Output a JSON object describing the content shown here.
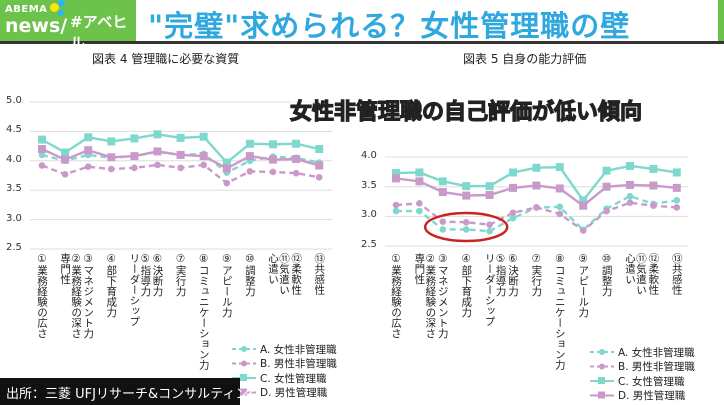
{
  "header": {
    "logo_top": "ABEMA",
    "logo_bottom": "news/",
    "hashtag": "#アベヒル",
    "title": "\"完璧\"求められる？女性管理職の壁",
    "brand_color": "#6cc24a",
    "title_color": "#2ea8de"
  },
  "caption": "女性非管理職の自己評価が低い傾向",
  "source": "出所：三菱 UFJリサーチ&コンサルティング",
  "colors": {
    "teal": "#7fd8cc",
    "pink": "#c99ac9",
    "highlight": "#cc2222"
  },
  "chart_data": [
    {
      "type": "line",
      "title": "図表 4  管理職に必要な資質",
      "ylim": [
        2.5,
        5.0
      ],
      "yticks": [
        "5.0",
        "4.5",
        "4.0",
        "3.5",
        "3.0",
        "2.5"
      ],
      "grid": true,
      "legend": "bottom-right",
      "categories": [
        "①業務経験の広さ",
        "②業務経験の深さ 専門性",
        "③マネジメント力",
        "④部下育成力",
        "⑤指導力 リーダーシップ",
        "⑥決断力",
        "⑦実行力",
        "⑧コミュニケーション力",
        "⑨アピール力",
        "⑩調整力",
        "⑪気遣い 心遣い",
        "⑫柔軟性",
        "⑬共感性"
      ],
      "series": [
        {
          "name": "A. 女性非管理職",
          "style": "dashed",
          "color": "teal",
          "marker": "circle",
          "values": [
            4.1,
            4.0,
            4.1,
            4.05,
            4.08,
            4.15,
            4.1,
            4.12,
            3.8,
            4.0,
            4.07,
            4.05,
            3.97
          ]
        },
        {
          "name": "B. 男性非管理職",
          "style": "dashed",
          "color": "pink",
          "marker": "circle",
          "values": [
            3.92,
            3.77,
            3.9,
            3.86,
            3.88,
            3.93,
            3.88,
            3.93,
            3.62,
            3.82,
            3.81,
            3.79,
            3.72
          ]
        },
        {
          "name": "C. 女性管理職",
          "style": "solid",
          "color": "teal",
          "marker": "square",
          "values": [
            4.36,
            4.14,
            4.4,
            4.33,
            4.38,
            4.45,
            4.39,
            4.41,
            3.97,
            4.29,
            4.28,
            4.29,
            4.2
          ]
        },
        {
          "name": "D. 男性管理職",
          "style": "solid",
          "color": "pink",
          "marker": "square",
          "values": [
            4.2,
            4.02,
            4.18,
            4.06,
            4.08,
            4.16,
            4.1,
            4.08,
            3.87,
            4.08,
            4.02,
            4.03,
            3.92
          ]
        }
      ]
    },
    {
      "type": "line",
      "title": "図表 5  自身の能力評価",
      "ylim": [
        2.5,
        4.5
      ],
      "yticks": [
        "4.0",
        "3.5",
        "3.0",
        "2.5"
      ],
      "grid": true,
      "legend": "bottom-right",
      "categories": [
        "①業務経験の広さ",
        "②業務経験の深さ 専門性",
        "③マネジメント力",
        "④部下育成力",
        "⑤指導力 リーダーシップ",
        "⑥決断力",
        "⑦実行力",
        "⑧コミュニケーション力",
        "⑨アピール力",
        "⑩調整力",
        "⑪気遣い 心遣い",
        "⑫柔軟性",
        "⑬共感性"
      ],
      "series": [
        {
          "name": "A. 女性非管理職",
          "style": "dashed",
          "color": "teal",
          "marker": "circle",
          "values": [
            3.09,
            3.09,
            2.78,
            2.78,
            2.75,
            2.97,
            3.15,
            3.16,
            2.77,
            3.13,
            3.34,
            3.21,
            3.27
          ]
        },
        {
          "name": "B. 男性非管理職",
          "style": "dashed",
          "color": "pink",
          "marker": "circle",
          "values": [
            3.19,
            3.22,
            2.91,
            2.9,
            2.86,
            3.06,
            3.15,
            3.04,
            2.76,
            3.09,
            3.23,
            3.18,
            3.15
          ]
        },
        {
          "name": "C. 女性管理職",
          "style": "solid",
          "color": "teal",
          "marker": "square",
          "values": [
            3.73,
            3.74,
            3.59,
            3.51,
            3.51,
            3.74,
            3.82,
            3.83,
            3.27,
            3.77,
            3.85,
            3.8,
            3.74
          ]
        },
        {
          "name": "D. 男性管理職",
          "style": "solid",
          "color": "pink",
          "marker": "square",
          "values": [
            3.64,
            3.59,
            3.41,
            3.35,
            3.36,
            3.48,
            3.52,
            3.47,
            3.18,
            3.5,
            3.53,
            3.52,
            3.48
          ]
        }
      ],
      "annotation": "highlight-ellipse around A/B at ③–⑤"
    }
  ]
}
